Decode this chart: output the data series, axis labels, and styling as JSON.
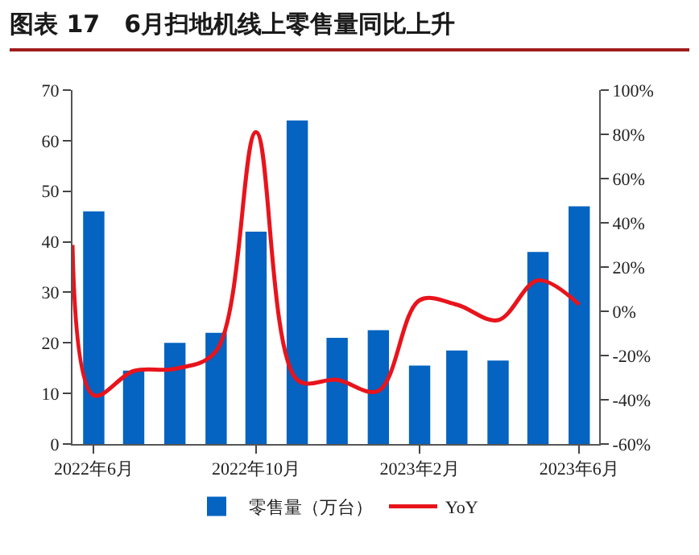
{
  "chart_data": {
    "type": "bar",
    "title": "图表 17　6月扫地机线上零售量同比上升",
    "x": [
      "2022-06",
      "2022-07",
      "2022-08",
      "2022-09",
      "2022-10",
      "2022-11",
      "2022-12",
      "2023-01",
      "2023-02",
      "2023-03",
      "2023-04",
      "2023-05",
      "2023-06"
    ],
    "xlim": [
      "2022-05-16",
      "2023-06-16"
    ],
    "xticks": [
      {
        "value": "2022-06",
        "label": "2022年6月"
      },
      {
        "value": "2022-10",
        "label": "2022年10月"
      },
      {
        "value": "2023-02",
        "label": "2023年2月"
      },
      {
        "value": "2023-06",
        "label": "2023年6月"
      }
    ],
    "series": [
      {
        "name": "零售量（万台）",
        "color": "#0563c1",
        "values": [
          46,
          14.5,
          20,
          22,
          42,
          64,
          21,
          22.5,
          15.5,
          18.5,
          16.5,
          38,
          47
        ]
      },
      {
        "name": "YoY",
        "type": "line",
        "axis": "y2",
        "color": "#e8141c",
        "x": [
          "2022-05-16",
          "2022-06",
          "2022-07",
          "2022-08",
          "2022-09",
          "2022-10",
          "2022-11",
          "2022-12",
          "2023-01",
          "2023-02",
          "2023-03",
          "2023-04",
          "2023-05",
          "2023-06"
        ],
        "values": [
          30,
          -38,
          -27,
          -26,
          -18,
          81,
          -31,
          -31,
          -36,
          5,
          3,
          -4,
          14,
          3
        ]
      }
    ],
    "ylim": [
      0,
      70
    ],
    "yticks": [
      0,
      10,
      20,
      30,
      40,
      50,
      60,
      70
    ],
    "y2lim": [
      -60,
      100
    ],
    "y2ticks": [
      {
        "value": -60,
        "label": "-60%"
      },
      {
        "value": -40,
        "label": "-40%"
      },
      {
        "value": -20,
        "label": "-20%"
      },
      {
        "value": 0,
        "label": "0%"
      },
      {
        "value": 20,
        "label": "20%"
      },
      {
        "value": 40,
        "label": "40%"
      },
      {
        "value": 60,
        "label": "60%"
      },
      {
        "value": 80,
        "label": "80%"
      },
      {
        "value": 100,
        "label": "100%"
      }
    ],
    "legend": "bottom",
    "grid": false
  }
}
